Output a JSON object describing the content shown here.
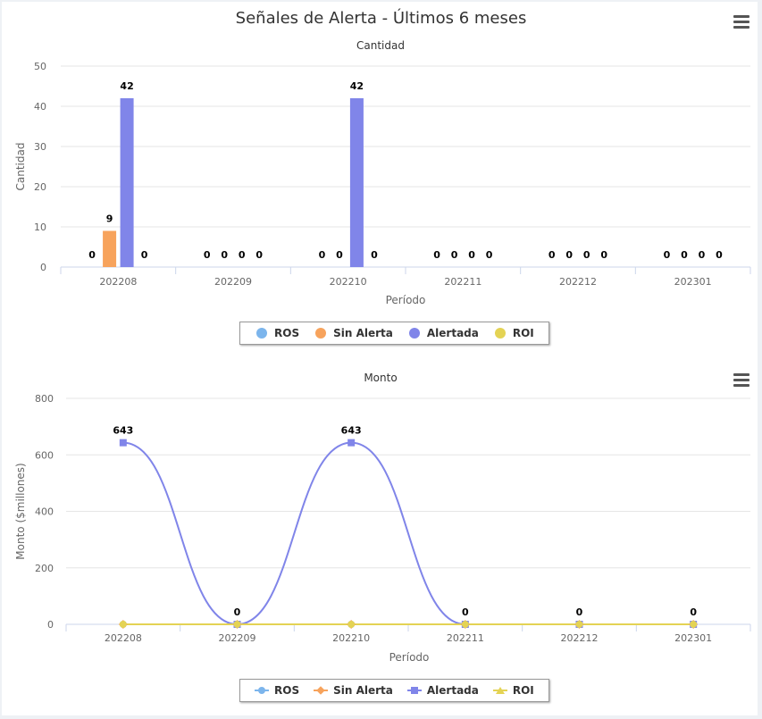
{
  "header": {
    "title": "Señales de Alerta - Últimos 6 meses"
  },
  "legend": [
    {
      "name": "ROS",
      "color": "#7cb5ec",
      "marker": "circle"
    },
    {
      "name": "Sin Alerta",
      "color": "#f7a35c",
      "marker": "diamond"
    },
    {
      "name": "Alertada",
      "color": "#8085e9",
      "marker": "square"
    },
    {
      "name": "ROI",
      "color": "#e4d354",
      "marker": "triangle"
    }
  ],
  "chart_data": [
    {
      "type": "bar",
      "title": "Cantidad",
      "xlabel": "Período",
      "ylabel": "Cantidad",
      "ylim": [
        0,
        50
      ],
      "yticks": [
        0,
        10,
        20,
        30,
        40,
        50
      ],
      "categories": [
        "202208",
        "202209",
        "202210",
        "202211",
        "202212",
        "202301"
      ],
      "series": [
        {
          "name": "ROS",
          "color": "#7cb5ec",
          "values": [
            0,
            0,
            0,
            0,
            0,
            0
          ]
        },
        {
          "name": "Sin Alerta",
          "color": "#f7a35c",
          "values": [
            9,
            0,
            0,
            0,
            0,
            0
          ]
        },
        {
          "name": "Alertada",
          "color": "#8085e9",
          "values": [
            42,
            0,
            42,
            0,
            0,
            0
          ]
        },
        {
          "name": "ROI",
          "color": "#e4d354",
          "values": [
            0,
            0,
            0,
            0,
            0,
            0
          ]
        }
      ]
    },
    {
      "type": "line",
      "title": "Monto",
      "xlabel": "Período",
      "ylabel": "Monto ($millones)",
      "ylim": [
        0,
        800
      ],
      "yticks": [
        0,
        200,
        400,
        600,
        800
      ],
      "categories": [
        "202208",
        "202209",
        "202210",
        "202211",
        "202212",
        "202301"
      ],
      "series": [
        {
          "name": "ROS",
          "color": "#7cb5ec",
          "values": [
            0,
            0,
            0,
            0,
            0,
            0
          ]
        },
        {
          "name": "Sin Alerta",
          "color": "#f7a35c",
          "values": [
            0,
            0,
            0,
            0,
            0,
            0
          ]
        },
        {
          "name": "Alertada",
          "color": "#8085e9",
          "values": [
            643,
            0,
            643,
            0,
            0,
            0
          ]
        },
        {
          "name": "ROI",
          "color": "#e4d354",
          "values": [
            0,
            0,
            0,
            0,
            0,
            0
          ]
        }
      ]
    }
  ]
}
